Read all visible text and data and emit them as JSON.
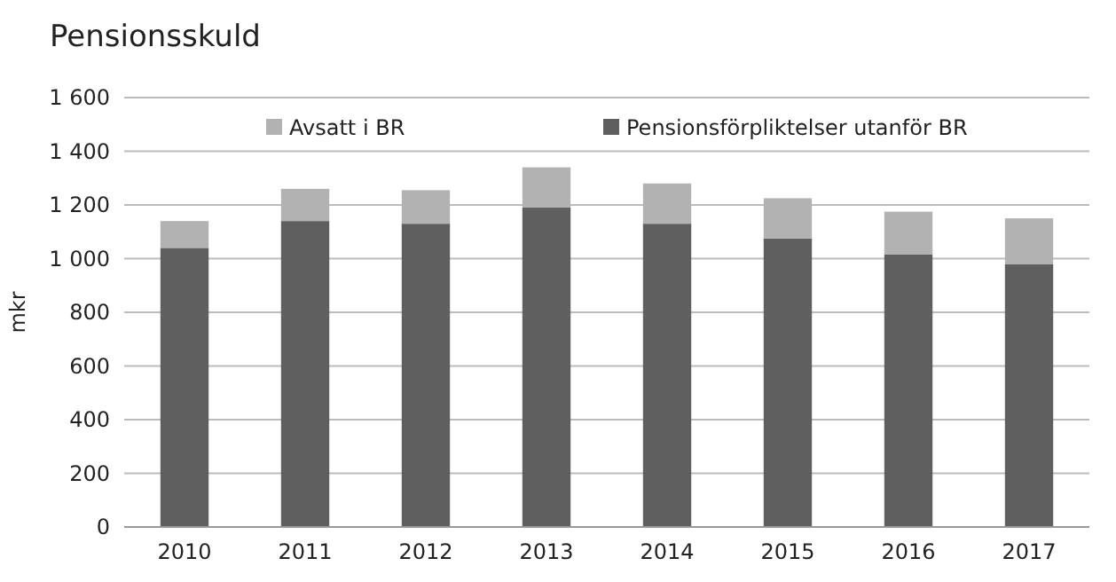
{
  "chart_data": {
    "type": "bar",
    "title": "Pensionsskuld",
    "ylabel": "mkr",
    "categories": [
      "2010",
      "2011",
      "2012",
      "2013",
      "2014",
      "2015",
      "2016",
      "2017"
    ],
    "stacked": true,
    "series": [
      {
        "name": "Pensionsförpliktelser utanför BR",
        "color": "#5f5f5f",
        "values": [
          1040,
          1140,
          1130,
          1190,
          1130,
          1075,
          1015,
          980
        ]
      },
      {
        "name": "Avsatt i BR",
        "color": "#b2b2b2",
        "values": [
          100,
          120,
          125,
          150,
          150,
          150,
          160,
          170
        ]
      }
    ],
    "ylim": [
      0,
      1600
    ],
    "yticks": [
      0,
      200,
      400,
      600,
      800,
      {
        "value": 1000,
        "label": "1 000"
      },
      {
        "value": 1200,
        "label": "1 200"
      },
      {
        "value": 1400,
        "label": "1 400"
      },
      {
        "value": 1600,
        "label": "1 600"
      }
    ],
    "grid": "y",
    "legend": "top"
  }
}
